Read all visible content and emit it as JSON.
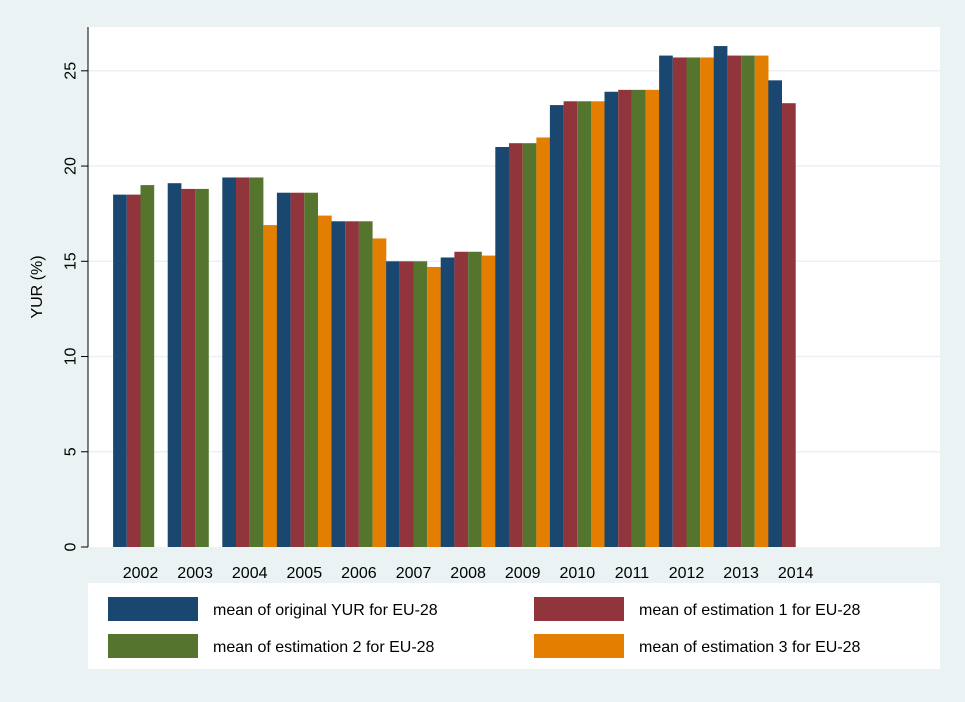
{
  "chart_data": {
    "type": "bar",
    "title": "",
    "xlabel": "",
    "ylabel": "YUR (%)",
    "ylim": [
      0,
      27.3
    ],
    "yticks": [
      0,
      5,
      10,
      15,
      20,
      25
    ],
    "grid": true,
    "legend_position": "bottom",
    "categories": [
      "2002",
      "2003",
      "2004",
      "2005",
      "2006",
      "2007",
      "2008",
      "2009",
      "2010",
      "2011",
      "2012",
      "2013",
      "2014"
    ],
    "series": [
      {
        "name": "mean of original YUR for EU-28",
        "color": "#1a476f",
        "values": [
          18.5,
          19.1,
          19.4,
          18.6,
          17.1,
          15.0,
          15.2,
          21.0,
          23.2,
          23.9,
          25.8,
          26.3,
          24.5
        ]
      },
      {
        "name": "mean of estimation 1 for EU-28",
        "color": "#90353b",
        "values": [
          18.5,
          18.8,
          19.4,
          18.6,
          17.1,
          15.0,
          15.5,
          21.2,
          23.4,
          24.0,
          25.7,
          25.8,
          23.3
        ]
      },
      {
        "name": "mean of estimation 2 for EU-28",
        "color": "#55752f",
        "values": [
          19.0,
          18.8,
          19.4,
          18.6,
          17.1,
          15.0,
          15.5,
          21.2,
          23.4,
          24.0,
          25.7,
          25.8,
          null
        ]
      },
      {
        "name": "mean of estimation 3 for EU-28",
        "color": "#e37e00",
        "values": [
          null,
          null,
          16.9,
          17.4,
          16.2,
          14.7,
          15.3,
          21.5,
          23.4,
          24.0,
          25.7,
          25.8,
          null
        ]
      }
    ]
  }
}
